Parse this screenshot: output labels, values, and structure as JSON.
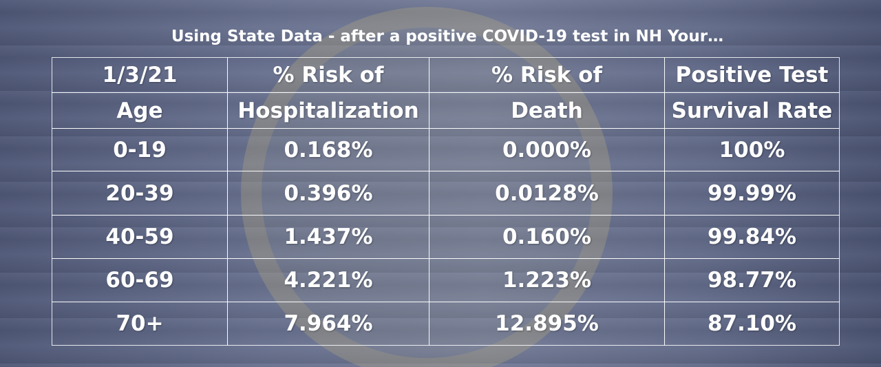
{
  "title": "Using State Data - after a positive COVID-19 test in NH Your…",
  "table": {
    "header": [
      [
        "1/3/21",
        "Age"
      ],
      [
        "% Risk of",
        "Hospitalization"
      ],
      [
        "% Risk of",
        "Death"
      ],
      [
        "Positive Test",
        "Survival Rate"
      ]
    ],
    "rows": [
      [
        "0-19",
        "0.168%",
        "0.000%",
        "100%"
      ],
      [
        "20-39",
        "0.396%",
        "0.0128%",
        "99.99%"
      ],
      [
        "40-59",
        "1.437%",
        "0.160%",
        "99.84%"
      ],
      [
        "60-69",
        "4.221%",
        "1.223%",
        "98.77%"
      ],
      [
        "70+",
        "7.964%",
        "12.895%",
        "87.10%"
      ]
    ]
  }
}
